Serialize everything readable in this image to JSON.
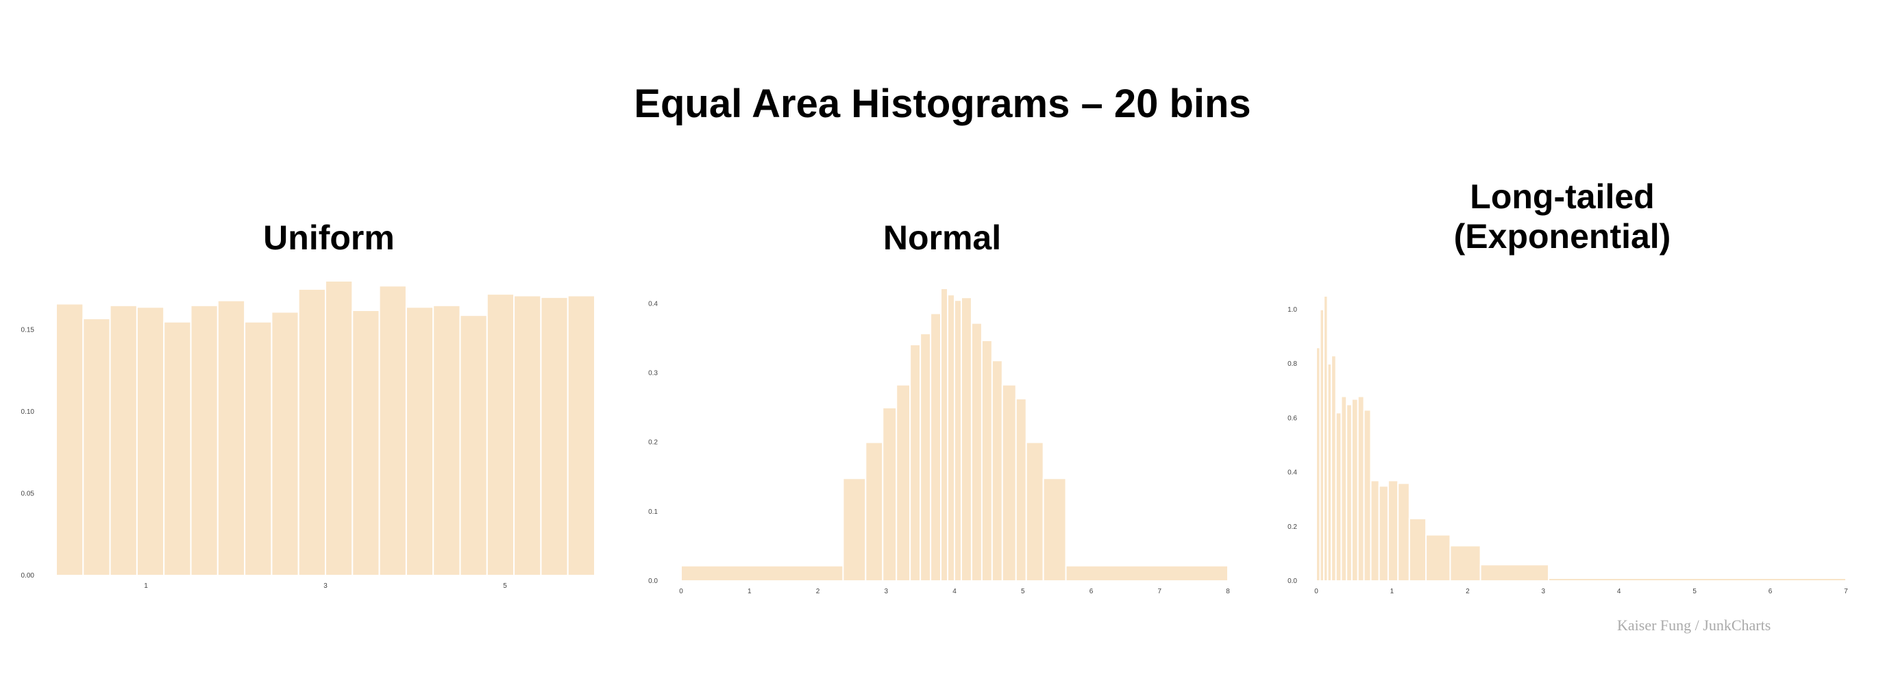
{
  "title": "Equal Area Histograms – 20 bins",
  "panels": [
    {
      "title": "Uniform"
    },
    {
      "title": "Normal"
    },
    {
      "title": "Long-tailed\n(Exponential)"
    }
  ],
  "credit": "Kaiser Fung / JunkCharts",
  "colors": {
    "bar": "#f9e4c7",
    "bar_stroke": "#ffffff"
  },
  "chart_data": [
    {
      "type": "bar",
      "title": "Uniform",
      "xlim": [
        0,
        6
      ],
      "ylim": [
        0,
        0.18
      ],
      "yticks": [
        0.0,
        0.05,
        0.1,
        0.15
      ],
      "ytick_labels": [
        "0.00",
        "0.05",
        "0.10",
        "0.15"
      ],
      "xticks": [
        1,
        3,
        5
      ],
      "xtick_labels": [
        "1",
        "3",
        "5"
      ],
      "bins": [
        {
          "x0": 0.0,
          "x1": 0.3,
          "y": 0.166
        },
        {
          "x0": 0.3,
          "x1": 0.6,
          "y": 0.157
        },
        {
          "x0": 0.6,
          "x1": 0.9,
          "y": 0.165
        },
        {
          "x0": 0.9,
          "x1": 1.2,
          "y": 0.164
        },
        {
          "x0": 1.2,
          "x1": 1.5,
          "y": 0.155
        },
        {
          "x0": 1.5,
          "x1": 1.8,
          "y": 0.165
        },
        {
          "x0": 1.8,
          "x1": 2.1,
          "y": 0.168
        },
        {
          "x0": 2.1,
          "x1": 2.4,
          "y": 0.155
        },
        {
          "x0": 2.4,
          "x1": 2.7,
          "y": 0.161
        },
        {
          "x0": 2.7,
          "x1": 3.0,
          "y": 0.175
        },
        {
          "x0": 3.0,
          "x1": 3.3,
          "y": 0.18
        },
        {
          "x0": 3.3,
          "x1": 3.6,
          "y": 0.162
        },
        {
          "x0": 3.6,
          "x1": 3.9,
          "y": 0.177
        },
        {
          "x0": 3.9,
          "x1": 4.2,
          "y": 0.164
        },
        {
          "x0": 4.2,
          "x1": 4.5,
          "y": 0.165
        },
        {
          "x0": 4.5,
          "x1": 4.8,
          "y": 0.159
        },
        {
          "x0": 4.8,
          "x1": 5.1,
          "y": 0.172
        },
        {
          "x0": 5.1,
          "x1": 5.4,
          "y": 0.171
        },
        {
          "x0": 5.4,
          "x1": 5.7,
          "y": 0.17
        },
        {
          "x0": 5.7,
          "x1": 6.0,
          "y": 0.171
        }
      ]
    },
    {
      "type": "bar",
      "title": "Normal",
      "xlim": [
        0,
        8
      ],
      "ylim": [
        0,
        0.425
      ],
      "yticks": [
        0.0,
        0.1,
        0.2,
        0.3,
        0.4
      ],
      "ytick_labels": [
        "0.0",
        "0.1",
        "0.2",
        "0.3",
        "0.4"
      ],
      "xticks": [
        0,
        1,
        2,
        3,
        4,
        5,
        6,
        7,
        8
      ],
      "xtick_labels": [
        "0",
        "1",
        "2",
        "3",
        "4",
        "5",
        "6",
        "7",
        "8"
      ],
      "bins": [
        {
          "x0": 0.0,
          "x1": 2.37,
          "y": 0.022
        },
        {
          "x0": 2.37,
          "x1": 2.7,
          "y": 0.148
        },
        {
          "x0": 2.7,
          "x1": 2.95,
          "y": 0.2
        },
        {
          "x0": 2.95,
          "x1": 3.15,
          "y": 0.25
        },
        {
          "x0": 3.15,
          "x1": 3.35,
          "y": 0.283
        },
        {
          "x0": 3.35,
          "x1": 3.5,
          "y": 0.341
        },
        {
          "x0": 3.5,
          "x1": 3.65,
          "y": 0.357
        },
        {
          "x0": 3.65,
          "x1": 3.8,
          "y": 0.386
        },
        {
          "x0": 3.8,
          "x1": 3.9,
          "y": 0.422
        },
        {
          "x0": 3.9,
          "x1": 4.0,
          "y": 0.413
        },
        {
          "x0": 4.0,
          "x1": 4.1,
          "y": 0.405
        },
        {
          "x0": 4.1,
          "x1": 4.25,
          "y": 0.409
        },
        {
          "x0": 4.25,
          "x1": 4.4,
          "y": 0.372
        },
        {
          "x0": 4.4,
          "x1": 4.55,
          "y": 0.347
        },
        {
          "x0": 4.55,
          "x1": 4.7,
          "y": 0.318
        },
        {
          "x0": 4.7,
          "x1": 4.9,
          "y": 0.283
        },
        {
          "x0": 4.9,
          "x1": 5.05,
          "y": 0.263
        },
        {
          "x0": 5.05,
          "x1": 5.3,
          "y": 0.2
        },
        {
          "x0": 5.3,
          "x1": 5.63,
          "y": 0.148
        },
        {
          "x0": 5.63,
          "x1": 8.0,
          "y": 0.022
        }
      ]
    },
    {
      "type": "bar",
      "title": "Long-tailed\n(Exponential)",
      "xlim": [
        0,
        7
      ],
      "ylim": [
        0,
        1.05
      ],
      "yticks": [
        0.0,
        0.2,
        0.4,
        0.6,
        0.8,
        1.0
      ],
      "ytick_labels": [
        "0.0",
        "0.2",
        "0.4",
        "0.6",
        "0.8",
        "1.0"
      ],
      "xticks": [
        0,
        1,
        2,
        3,
        4,
        5,
        6,
        7
      ],
      "xtick_labels": [
        "0",
        "1",
        "2",
        "3",
        "4",
        "5",
        "6",
        "7"
      ],
      "bins": [
        {
          "x0": 0.0,
          "x1": 0.05,
          "y": 0.86
        },
        {
          "x0": 0.05,
          "x1": 0.1,
          "y": 1.0
        },
        {
          "x0": 0.1,
          "x1": 0.15,
          "y": 1.05
        },
        {
          "x0": 0.15,
          "x1": 0.2,
          "y": 0.8
        },
        {
          "x0": 0.2,
          "x1": 0.26,
          "y": 0.83
        },
        {
          "x0": 0.26,
          "x1": 0.33,
          "y": 0.62
        },
        {
          "x0": 0.33,
          "x1": 0.4,
          "y": 0.68
        },
        {
          "x0": 0.4,
          "x1": 0.47,
          "y": 0.65
        },
        {
          "x0": 0.47,
          "x1": 0.55,
          "y": 0.67
        },
        {
          "x0": 0.55,
          "x1": 0.63,
          "y": 0.68
        },
        {
          "x0": 0.63,
          "x1": 0.72,
          "y": 0.63
        },
        {
          "x0": 0.72,
          "x1": 0.83,
          "y": 0.37
        },
        {
          "x0": 0.83,
          "x1": 0.95,
          "y": 0.35
        },
        {
          "x0": 0.95,
          "x1": 1.08,
          "y": 0.37
        },
        {
          "x0": 1.08,
          "x1": 1.23,
          "y": 0.36
        },
        {
          "x0": 1.23,
          "x1": 1.45,
          "y": 0.23
        },
        {
          "x0": 1.45,
          "x1": 1.77,
          "y": 0.17
        },
        {
          "x0": 1.77,
          "x1": 2.17,
          "y": 0.13
        },
        {
          "x0": 2.17,
          "x1": 3.07,
          "y": 0.06
        },
        {
          "x0": 3.07,
          "x1": 7.0,
          "y": 0.01
        }
      ]
    }
  ]
}
